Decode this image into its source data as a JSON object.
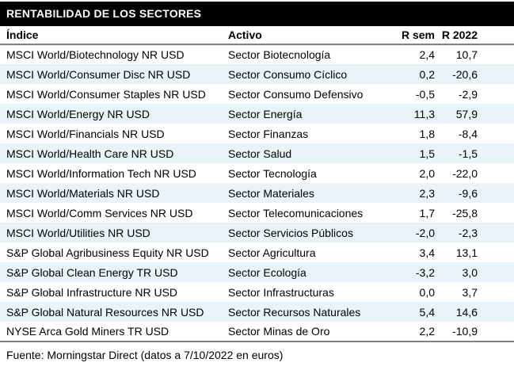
{
  "title_bar": {
    "label": "RENTABILIDAD DE LOS SECTORES",
    "background_color": "#000000",
    "text_color": "#ffffff"
  },
  "table": {
    "columns": {
      "indice": "Índice",
      "activo": "Activo",
      "r_sem": "R sem",
      "r_2022": "R 2022"
    },
    "rows": [
      {
        "indice": "MSCI World/Biotechnology NR USD",
        "activo": "Sector Biotecnología",
        "r_sem": "2,4",
        "r_2022": "10,7"
      },
      {
        "indice": "MSCI World/Consumer Disc NR USD",
        "activo": "Sector Consumo Cíclico",
        "r_sem": "0,2",
        "r_2022": "-20,6"
      },
      {
        "indice": "MSCI World/Consumer Staples NR USD",
        "activo": "Sector Consumo Defensivo",
        "r_sem": "-0,5",
        "r_2022": "-2,9"
      },
      {
        "indice": "MSCI World/Energy NR USD",
        "activo": "Sector Energía",
        "r_sem": "11,3",
        "r_2022": "57,9"
      },
      {
        "indice": "MSCI World/Financials NR USD",
        "activo": "Sector Finanzas",
        "r_sem": "1,8",
        "r_2022": "-8,4"
      },
      {
        "indice": "MSCI World/Health Care NR USD",
        "activo": "Sector Salud",
        "r_sem": "1,5",
        "r_2022": "-1,5"
      },
      {
        "indice": "MSCI World/Information Tech NR USD",
        "activo": "Sector Tecnología",
        "r_sem": "2,0",
        "r_2022": "-22,0"
      },
      {
        "indice": "MSCI World/Materials NR USD",
        "activo": "Sector Materiales",
        "r_sem": "2,3",
        "r_2022": "-9,6"
      },
      {
        "indice": "MSCI World/Comm Services NR USD",
        "activo": "Sector Telecomunicaciones",
        "r_sem": "1,7",
        "r_2022": "-25,8"
      },
      {
        "indice": "MSCI World/Utilities NR USD",
        "activo": "Sector Servicios Públicos",
        "r_sem": "-2,0",
        "r_2022": "-2,3"
      },
      {
        "indice": "S&P Global Agribusiness Equity NR USD",
        "activo": "Sector Agricultura",
        "r_sem": "3,4",
        "r_2022": "13,1"
      },
      {
        "indice": "S&P Global Clean Energy TR USD",
        "activo": "Sector Ecología",
        "r_sem": "-3,2",
        "r_2022": "3,0"
      },
      {
        "indice": "S&P Global Infrastructure NR USD",
        "activo": "Sector Infrastructuras",
        "r_sem": "0,0",
        "r_2022": "3,7"
      },
      {
        "indice": "S&P Global Natural Resources NR USD",
        "activo": "Sector Recursos Naturales",
        "r_sem": "5,4",
        "r_2022": "14,6"
      },
      {
        "indice": "NYSE Arca Gold Miners TR USD",
        "activo": "Sector Minas de Oro",
        "r_sem": "2,2",
        "r_2022": "-10,9"
      }
    ],
    "stripe_color": "#e9f4f8",
    "rule_color": "#808080"
  },
  "footer": {
    "source_note": "Fuente: Morningstar Direct (datos a 7/10/2022 en euros)"
  }
}
